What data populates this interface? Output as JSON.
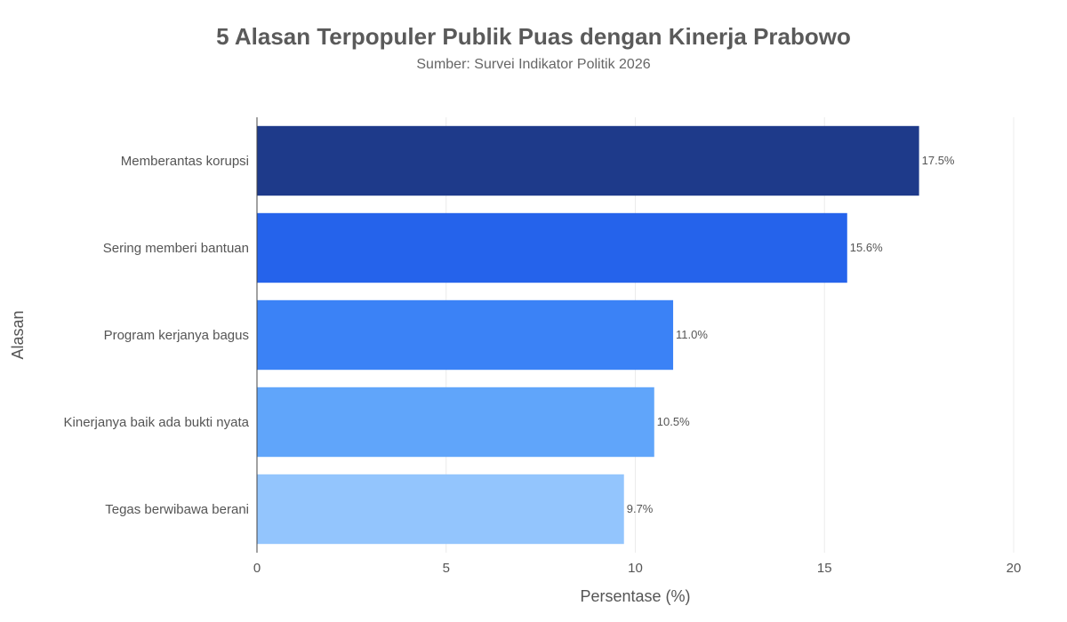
{
  "chart_data": {
    "type": "bar",
    "orientation": "horizontal",
    "title": "5 Alasan Terpopuler Publik Puas dengan Kinerja Prabowo",
    "subtitle": "Sumber: Survei Indikator Politik 2026",
    "xlabel": "Persentase (%)",
    "ylabel": "Alasan",
    "xlim": [
      0,
      20
    ],
    "xticks": [
      0,
      5,
      10,
      15,
      20
    ],
    "grid": true,
    "categories": [
      "Memberantas korupsi",
      "Sering memberi bantuan",
      "Program kerjanya bagus",
      "Kinerjanya baik ada bukti nyata",
      "Tegas berwibawa berani"
    ],
    "values": [
      17.5,
      15.6,
      11.0,
      10.5,
      9.7
    ],
    "value_labels": [
      "17.5%",
      "15.6%",
      "11.0%",
      "10.5%",
      "9.7%"
    ],
    "colors": [
      "#1e3a8a",
      "#2563eb",
      "#3b82f6",
      "#60a5fa",
      "#93c5fd"
    ]
  }
}
